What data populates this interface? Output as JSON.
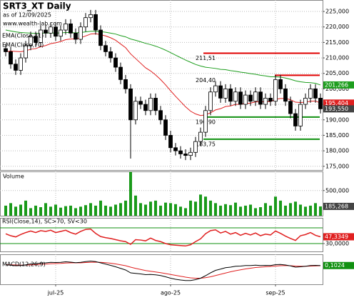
{
  "chart_data": [
    {
      "type": "candlestick",
      "title": "SRT3_XT Daily",
      "subtitle": "as of 12/09/2025",
      "source": "www.wealth-lab.com",
      "open": [
        213000,
        212000,
        208000,
        206000,
        210000,
        214000,
        217000,
        215000,
        219000,
        218000,
        220000,
        217000,
        219000,
        221000,
        218000,
        216000,
        220000,
        223000,
        224000,
        219000,
        214000,
        212000,
        210000,
        207000,
        203000,
        200000,
        190000,
        196000,
        195000,
        193000,
        197000,
        193000,
        190000,
        185000,
        181000,
        180000,
        179000,
        178500,
        179500,
        183000,
        186000,
        193000,
        199000,
        201000,
        197000,
        200000,
        196000,
        199000,
        195000,
        198000,
        196000,
        199000,
        195000,
        197000,
        196000,
        203000,
        200000,
        196000,
        192000,
        188000,
        195000,
        197000,
        200000,
        197000
      ],
      "high": [
        214500,
        213500,
        209500,
        211500,
        215500,
        218500,
        218500,
        220500,
        220500,
        221500,
        221500,
        220500,
        222500,
        222500,
        219500,
        221500,
        224500,
        225500,
        225500,
        220500,
        215500,
        213500,
        211500,
        208500,
        204500,
        201500,
        197500,
        197500,
        196500,
        198500,
        198500,
        194500,
        191500,
        186500,
        182500,
        181500,
        180500,
        181000,
        184500,
        187500,
        194500,
        200500,
        202500,
        202500,
        201500,
        201500,
        200500,
        200500,
        199500,
        199500,
        200500,
        200500,
        198500,
        198500,
        204500,
        204500,
        201500,
        197500,
        193500,
        196500,
        198500,
        201500,
        201500,
        198500
      ],
      "low": [
        210500,
        206500,
        204500,
        204500,
        208500,
        212500,
        213500,
        213500,
        216500,
        216500,
        215500,
        215500,
        217500,
        216500,
        214500,
        214500,
        218500,
        221500,
        217500,
        212500,
        210500,
        208500,
        205500,
        201500,
        198500,
        177500,
        188500,
        193500,
        191500,
        191500,
        191500,
        188500,
        183500,
        179500,
        178500,
        177500,
        177000,
        177000,
        178000,
        181500,
        184500,
        191500,
        197500,
        195500,
        195500,
        194500,
        194500,
        193500,
        193500,
        194500,
        194500,
        193500,
        193500,
        194500,
        194500,
        198500,
        194500,
        190500,
        186500,
        186500,
        193500,
        195500,
        195500,
        192050
      ],
      "close": [
        212000,
        208000,
        206000,
        210000,
        214000,
        217000,
        215000,
        219000,
        218000,
        220000,
        217000,
        219000,
        221000,
        218000,
        216000,
        220000,
        223000,
        224000,
        219000,
        214000,
        212000,
        210000,
        207000,
        203000,
        200000,
        190000,
        196000,
        195000,
        193000,
        197000,
        193000,
        190000,
        185000,
        181000,
        180000,
        179000,
        178500,
        179500,
        183000,
        186000,
        193000,
        199000,
        201000,
        197000,
        200000,
        196000,
        199000,
        195000,
        198000,
        196000,
        199000,
        195000,
        197000,
        196000,
        203000,
        200000,
        196000,
        192000,
        188000,
        195000,
        197000,
        200000,
        197000,
        193550
      ],
      "close_label": "193,550",
      "close_color": "#444444",
      "series": [
        {
          "name": "EMA(Close,21)",
          "color": "#e02020",
          "last_label": "195,404",
          "values": [
            212000,
            212200,
            212100,
            212000,
            212300,
            212800,
            213000,
            213600,
            214000,
            214600,
            214900,
            215300,
            215900,
            216100,
            216100,
            216500,
            217100,
            217700,
            217800,
            217500,
            217100,
            216500,
            215700,
            214500,
            213300,
            211300,
            209800,
            208300,
            206800,
            205800,
            204500,
            203000,
            201300,
            199400,
            197600,
            195900,
            194200,
            192800,
            191900,
            191400,
            191600,
            192300,
            193200,
            193600,
            194300,
            194500,
            195000,
            195000,
            195300,
            195400,
            195800,
            195800,
            195900,
            195900,
            196600,
            196900,
            196900,
            196500,
            195700,
            195600,
            195700,
            196000,
            196100,
            195404
          ]
        },
        {
          "name": "EMA(Close,70)",
          "color": "#1e9e1e",
          "last_label": "201,266",
          "values": [
            219000,
            218700,
            218400,
            218200,
            218100,
            218000,
            217900,
            218000,
            218000,
            218100,
            218000,
            218100,
            218200,
            218200,
            218100,
            218200,
            218400,
            218600,
            218600,
            218500,
            218300,
            218000,
            217700,
            217200,
            216800,
            216100,
            215700,
            215200,
            214700,
            214300,
            213800,
            213200,
            212500,
            211700,
            210900,
            210100,
            209300,
            208600,
            207900,
            207400,
            207000,
            206800,
            206600,
            206300,
            206200,
            205900,
            205700,
            205400,
            205200,
            204900,
            204700,
            204400,
            204200,
            203900,
            203900,
            203800,
            203500,
            203100,
            202600,
            202300,
            202100,
            202000,
            201800,
            201266
          ]
        }
      ],
      "levels": [
        {
          "value": 211510,
          "label": "211,51",
          "color": "#e00000"
        },
        {
          "value": 204400,
          "label": "204,40",
          "color": "#e00000"
        },
        {
          "value": 190900,
          "label": "190,90",
          "color": "#109010"
        },
        {
          "value": 183750,
          "label": "183,75",
          "color": "#109010"
        }
      ],
      "ylim": [
        173800,
        228700
      ],
      "yticks": [
        {
          "value": 175000,
          "label": "175,000"
        },
        {
          "value": 180000,
          "label": "180,000"
        },
        {
          "value": 185000,
          "label": "185,000"
        },
        {
          "value": 190000,
          "label": "190,000"
        },
        {
          "value": 195000,
          "label": "195,000"
        },
        {
          "value": 200000,
          "label": "200,000"
        },
        {
          "value": 205000,
          "label": "205,000"
        },
        {
          "value": 210000,
          "label": "210,000"
        },
        {
          "value": 215000,
          "label": "215,000"
        },
        {
          "value": 220000,
          "label": "220,000"
        },
        {
          "value": 225000,
          "label": "225,000"
        }
      ],
      "grid": true
    },
    {
      "type": "bar",
      "title": "Volume",
      "color": "#1a9a1a",
      "last_label": "185,268",
      "last_color": "#444444",
      "values": [
        200000,
        250000,
        180000,
        220000,
        300000,
        150000,
        200000,
        170000,
        250000,
        180000,
        220000,
        160000,
        190000,
        200000,
        150000,
        180000,
        210000,
        250000,
        200000,
        300000,
        200000,
        180000,
        220000,
        250000,
        300000,
        870000,
        400000,
        250000,
        220000,
        280000,
        300000,
        200000,
        260000,
        250000,
        230000,
        180000,
        150000,
        300000,
        280000,
        420000,
        380000,
        300000,
        250000,
        200000,
        230000,
        210000,
        260000,
        180000,
        200000,
        220000,
        150000,
        170000,
        250000,
        200000,
        380000,
        300000,
        200000,
        250000,
        280000,
        220000,
        180000,
        200000,
        250000,
        185268
      ],
      "ylim": [
        0,
        880000
      ],
      "yticks": [
        {
          "value": 500000,
          "label": "500,000"
        }
      ],
      "grid": true
    },
    {
      "type": "line",
      "title": "RSI(Close,14), SC>70, SV<30",
      "color": "#e02020",
      "last_label": "47,3349",
      "last_color": "#e02020",
      "values": [
        55,
        50,
        47,
        53,
        58,
        62,
        58,
        63,
        61,
        64,
        58,
        61,
        64,
        58,
        54,
        61,
        66,
        67,
        56,
        48,
        45,
        43,
        40,
        37,
        35,
        28,
        40,
        39,
        37,
        44,
        38,
        35,
        30,
        27,
        26,
        25,
        24,
        27,
        35,
        42,
        55,
        63,
        65,
        57,
        61,
        54,
        58,
        51,
        56,
        52,
        57,
        50,
        54,
        52,
        62,
        56,
        49,
        43,
        38,
        50,
        53,
        58,
        51,
        47.3349
      ],
      "thresholds": [
        70,
        30
      ],
      "threshold_color": "#109010",
      "ylim": [
        10,
        95.5
      ],
      "yticks": [
        {
          "value": 30,
          "label": "30,0000"
        }
      ],
      "grid": true
    },
    {
      "type": "macd",
      "title": "MACD(12,26,9)",
      "color": "#000000",
      "signal_color": "#e02020",
      "last_label": "0,1024",
      "last_color": "#109010",
      "values": [
        0.5,
        0.3,
        0,
        0.1,
        0.5,
        1,
        1.1,
        1.5,
        1.6,
        1.9,
        1.8,
        1.9,
        2.2,
        2,
        1.7,
        1.9,
        2.3,
        2.6,
        2.3,
        1.6,
        0.9,
        0.2,
        -0.6,
        -1.5,
        -2.4,
        -4,
        -4.3,
        -4.6,
        -5,
        -4.9,
        -5.1,
        -5.5,
        -6.2,
        -7,
        -7.6,
        -8,
        -8.3,
        -8.3,
        -7.8,
        -7,
        -5.6,
        -4,
        -2.6,
        -1.9,
        -1.1,
        -0.8,
        -0.3,
        -0.2,
        0.1,
        0.1,
        0.3,
        0.1,
        0.2,
        0.1,
        0.6,
        0.7,
        0.4,
        -0.1,
        -0.8,
        -0.6,
        -0.3,
        0.1,
        0.2,
        0.1024
      ],
      "signal": [
        0.6,
        0.5,
        0.4,
        0.3,
        0.4,
        0.5,
        0.6,
        0.8,
        0.9,
        1.1,
        1.2,
        1.3,
        1.5,
        1.6,
        1.6,
        1.6,
        1.8,
        1.9,
        2,
        1.9,
        1.7,
        1.4,
        1,
        0.5,
        0,
        -0.8,
        -1.5,
        -2.1,
        -2.7,
        -3.1,
        -3.5,
        -3.9,
        -4.4,
        -4.9,
        -5.4,
        -5.9,
        -6.4,
        -6.8,
        -7,
        -7,
        -6.7,
        -6.2,
        -5.5,
        -4.8,
        -4.1,
        -3.4,
        -2.8,
        -2.3,
        -1.8,
        -1.4,
        -1,
        -0.8,
        -0.6,
        -0.4,
        -0.2,
        0,
        0.1,
        0,
        -0.2,
        -0.3,
        -0.3,
        -0.2,
        -0.1,
        0
      ],
      "ylim": [
        -10.4,
        6.4
      ],
      "xticks": [
        {
          "value": 10,
          "label": "jul-25"
        },
        {
          "value": 33,
          "label": "ago-25"
        },
        {
          "value": 54,
          "label": "sep-25"
        }
      ]
    }
  ]
}
